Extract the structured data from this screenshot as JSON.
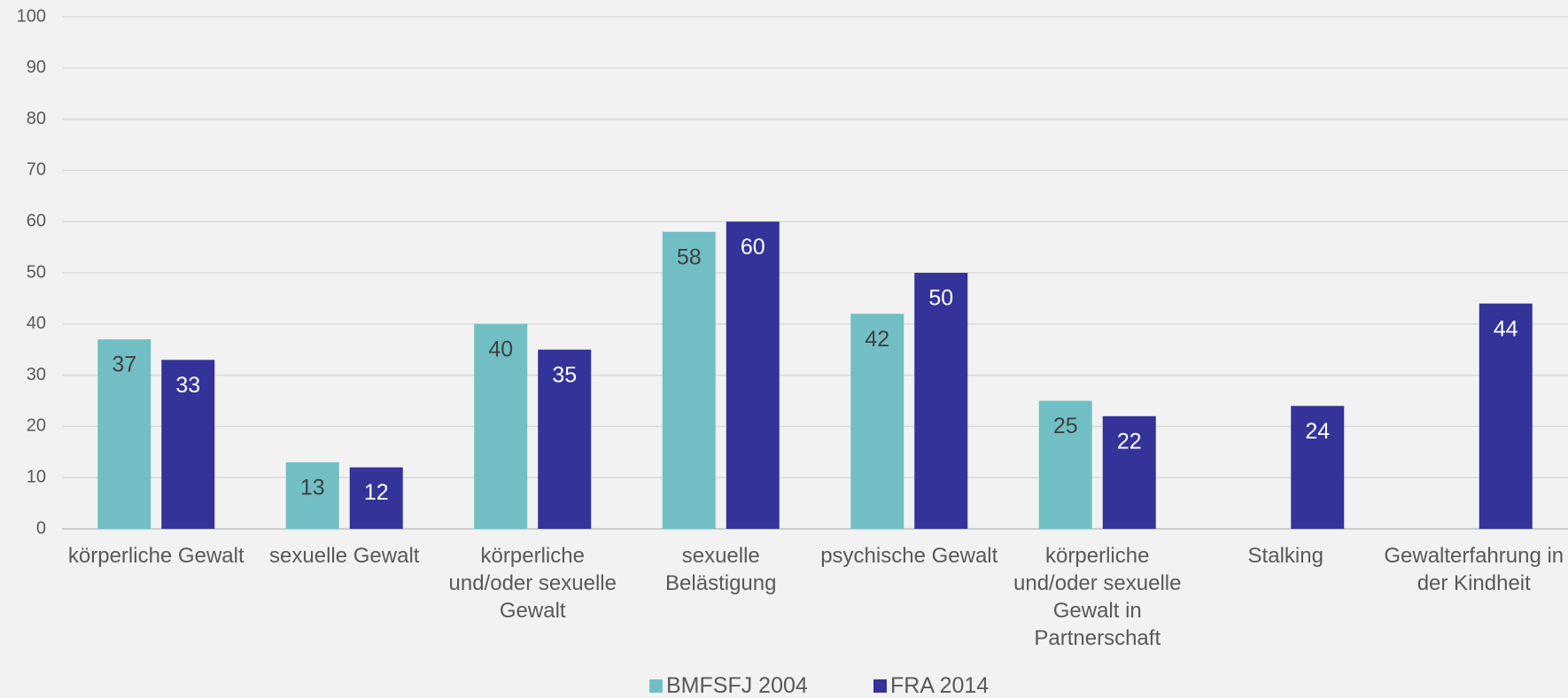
{
  "chart_data": {
    "type": "bar",
    "categories": [
      "körperliche Gewalt",
      "sexuelle Gewalt",
      "körperliche und/oder sexuelle Gewalt",
      "sexuelle Belästigung",
      "psychische Gewalt",
      "körperliche und/oder sexuelle Gewalt in Partnerschaft",
      "Stalking",
      "Gewalterfahrung in der Kindheit"
    ],
    "series": [
      {
        "name": "BMFSFJ 2004",
        "color": "#71bfc4",
        "values": [
          37,
          13,
          40,
          58,
          42,
          25,
          null,
          null
        ]
      },
      {
        "name": "FRA 2014",
        "color": "#333399",
        "values": [
          33,
          12,
          35,
          60,
          50,
          22,
          24,
          44
        ]
      }
    ],
    "ylim": [
      0,
      100
    ],
    "yticks": [
      0,
      10,
      20,
      30,
      40,
      50,
      60,
      70,
      80,
      90,
      100
    ],
    "grid": true,
    "legend": "bottom"
  }
}
